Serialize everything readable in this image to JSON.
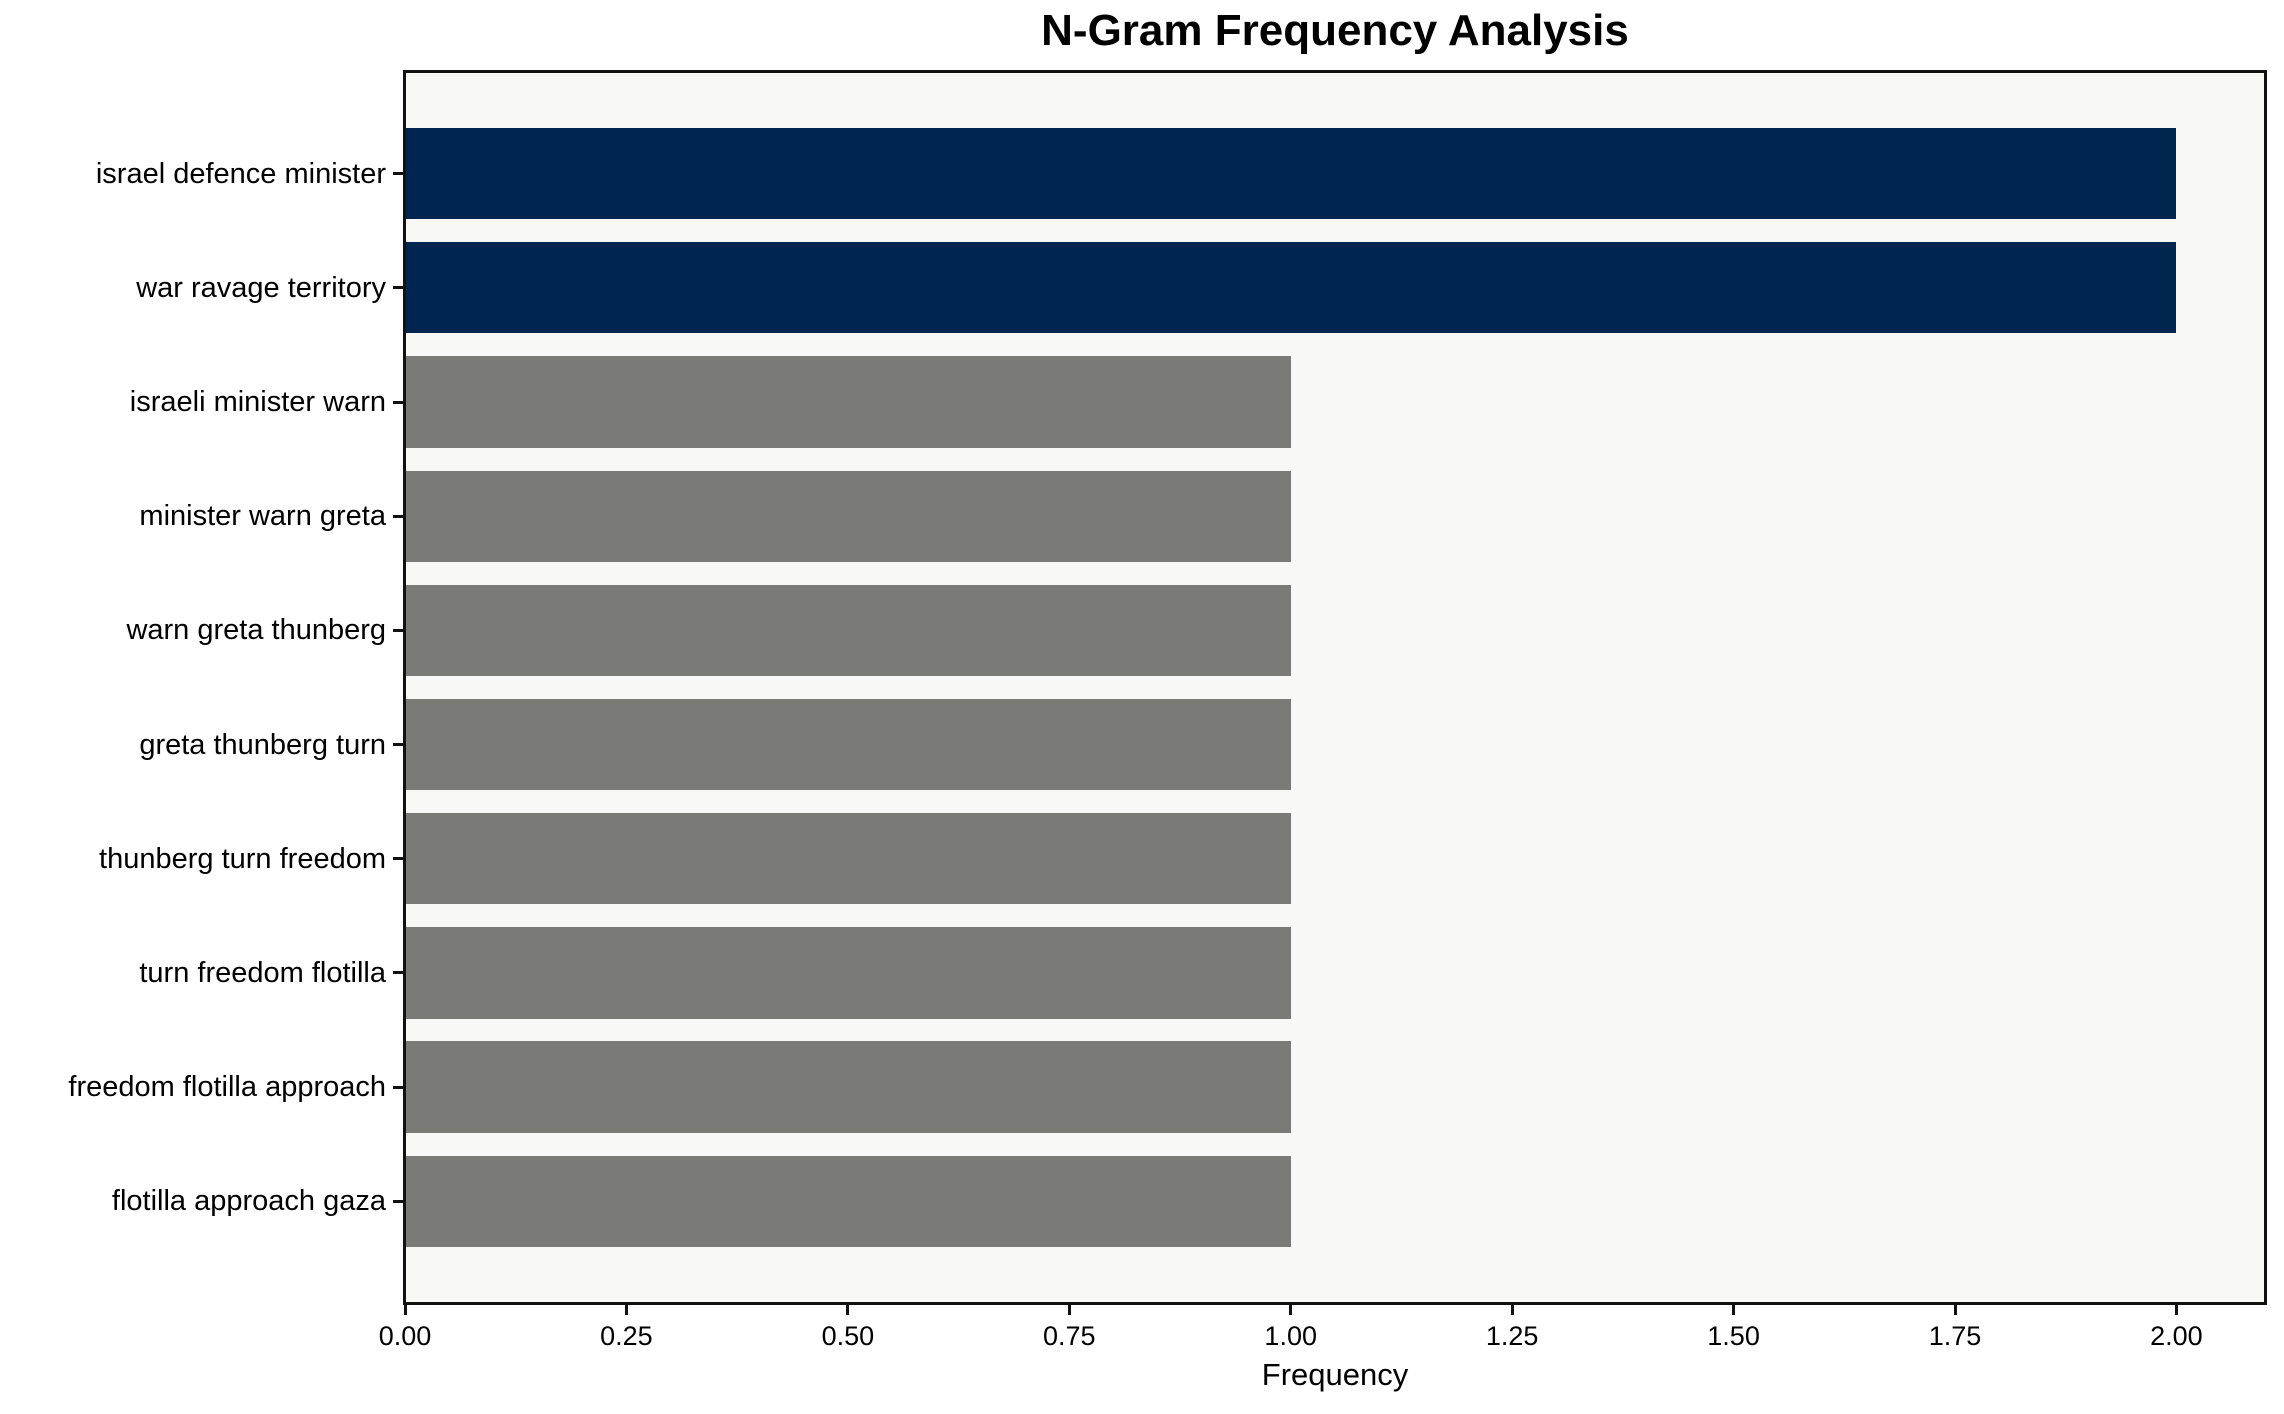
{
  "chart_data": {
    "type": "bar",
    "orientation": "horizontal",
    "title": "N-Gram Frequency Analysis",
    "xlabel": "Frequency",
    "ylabel": "",
    "categories": [
      "israel defence minister",
      "war ravage territory",
      "israeli minister warn",
      "minister warn greta",
      "warn greta thunberg",
      "greta thunberg turn",
      "thunberg turn freedom",
      "turn freedom flotilla",
      "freedom flotilla approach",
      "flotilla approach gaza"
    ],
    "values": [
      2,
      2,
      1,
      1,
      1,
      1,
      1,
      1,
      1,
      1
    ],
    "bar_colors": [
      "#00254e",
      "#00254e",
      "#7a7a77",
      "#7a7a77",
      "#7a7a77",
      "#7a7a77",
      "#7a7a77",
      "#7a7a77",
      "#7a7a77",
      "#7a7a77"
    ],
    "xlim": [
      0,
      2.1
    ],
    "xtick_values": [
      0,
      0.25,
      0.5,
      0.75,
      1.0,
      1.25,
      1.5,
      1.75,
      2.0
    ],
    "xtick_labels": [
      "0.00",
      "0.25",
      "0.50",
      "0.75",
      "1.00",
      "1.25",
      "1.50",
      "1.75",
      "2.00"
    ],
    "grid": false,
    "legend": false,
    "colors": {
      "highlight": "#00254e",
      "default": "#7a7a77",
      "plot_background": "#f8f8f6",
      "figure_background": "#ffffff",
      "spine": "#111111",
      "text": "#000000"
    }
  }
}
